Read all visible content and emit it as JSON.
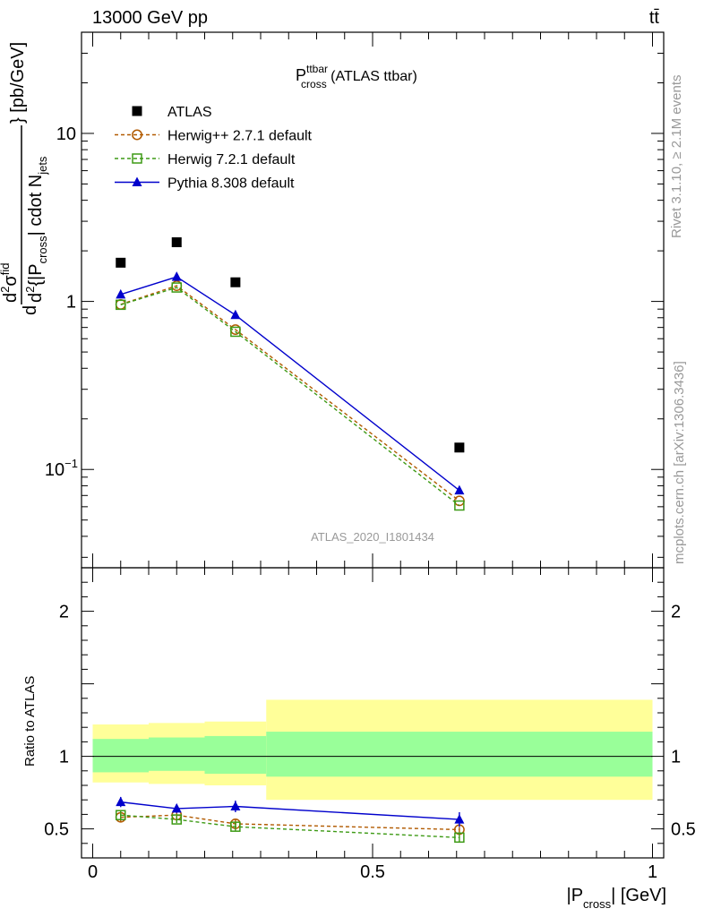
{
  "header": {
    "left": "13000 GeV pp",
    "right": "tt̄"
  },
  "side_labels": {
    "rivet": "Rivet 3.1.10, ≥ 2.1M events",
    "mcplots": "mcplots.cern.ch [arXiv:1306.3436]"
  },
  "watermark": "ATLAS_2020_I1801434",
  "chart_data": {
    "type": "line",
    "title": {
      "main": "P",
      "sup": "ttbar",
      "sub": "cross",
      "suffix": " (ATLAS ttbar)"
    },
    "ylabel": {
      "d_top": "d",
      "d2_top": "d",
      "sup2": "2",
      "sigma": "σ",
      "sigma_sup": "fid",
      "d2_bottom": "d",
      "brace_left": "{|P",
      "sub_cross": "cross",
      "mid": "| cdot N",
      "sub_jets": "jets",
      "unit": "} [pb/GeV]"
    },
    "xlabel": {
      "pre": "|P",
      "sub": "cross",
      "post": "| [GeV]"
    },
    "ratio_ylabel": "Ratio to ATLAS",
    "xlim": [
      -0.02,
      1.02
    ],
    "ylim_main": [
      0.026,
      40
    ],
    "ylim_ratio": [
      0.3,
      2.3
    ],
    "yscale_main": "log",
    "main_ticks": [
      {
        "value": 10,
        "label": "10"
      },
      {
        "value": 1,
        "label": "1"
      },
      {
        "value": 0.1,
        "label": "10",
        "sup": "−1"
      }
    ],
    "ratio_ticks": [
      {
        "value": 2,
        "label": "2"
      },
      {
        "value": 1,
        "label": "1"
      },
      {
        "value": 0.5,
        "label": "0.5"
      }
    ],
    "x_ticks": [
      {
        "value": 0,
        "label": "0"
      },
      {
        "value": 0.5,
        "label": "0.5"
      },
      {
        "value": 1,
        "label": "1"
      }
    ],
    "bins": [
      {
        "lo": 0.0,
        "hi": 0.1
      },
      {
        "lo": 0.1,
        "hi": 0.2
      },
      {
        "lo": 0.2,
        "hi": 0.31
      },
      {
        "lo": 0.31,
        "hi": 1.0
      }
    ],
    "bands": {
      "inner": [
        [
          0.89,
          1.12
        ],
        [
          0.9,
          1.13
        ],
        [
          0.88,
          1.14
        ],
        [
          0.86,
          1.17
        ]
      ],
      "outer": [
        [
          0.82,
          1.22
        ],
        [
          0.81,
          1.23
        ],
        [
          0.8,
          1.24
        ],
        [
          0.7,
          1.39
        ]
      ],
      "inner_color": "#99ff99",
      "outer_color": "#ffff99"
    },
    "x": [
      0.05,
      0.15,
      0.255,
      0.655
    ],
    "series": [
      {
        "name": "ATLAS",
        "role": "data",
        "marker": "square-filled",
        "color": "#000000",
        "values": [
          1.7,
          2.25,
          1.3,
          0.135
        ]
      },
      {
        "name": "Herwig++ 2.7.1 default",
        "role": "mc",
        "marker": "circle-open",
        "line": "dashed",
        "color": "#b15a00",
        "values": [
          0.96,
          1.24,
          0.68,
          0.065
        ],
        "ratio": [
          0.58,
          0.595,
          0.535,
          0.495
        ],
        "ratio_err": [
          0.03,
          0.025,
          0.03,
          0.02
        ]
      },
      {
        "name": "Herwig 7.2.1 default",
        "role": "mc",
        "marker": "square-open",
        "line": "dashed",
        "color": "#3d9a15",
        "values": [
          0.955,
          1.21,
          0.66,
          0.061
        ],
        "ratio": [
          0.595,
          0.565,
          0.515,
          0.44
        ],
        "ratio_err": [
          0.03,
          0.025,
          0.03,
          0.03
        ]
      },
      {
        "name": "Pythia 8.308 default",
        "role": "mc",
        "marker": "triangle-filled",
        "line": "solid",
        "color": "#0000cc",
        "values": [
          1.1,
          1.4,
          0.83,
          0.075
        ],
        "ratio": [
          0.685,
          0.64,
          0.655,
          0.565
        ],
        "ratio_err": [
          0.035,
          0.03,
          0.04,
          0.05
        ]
      }
    ]
  }
}
